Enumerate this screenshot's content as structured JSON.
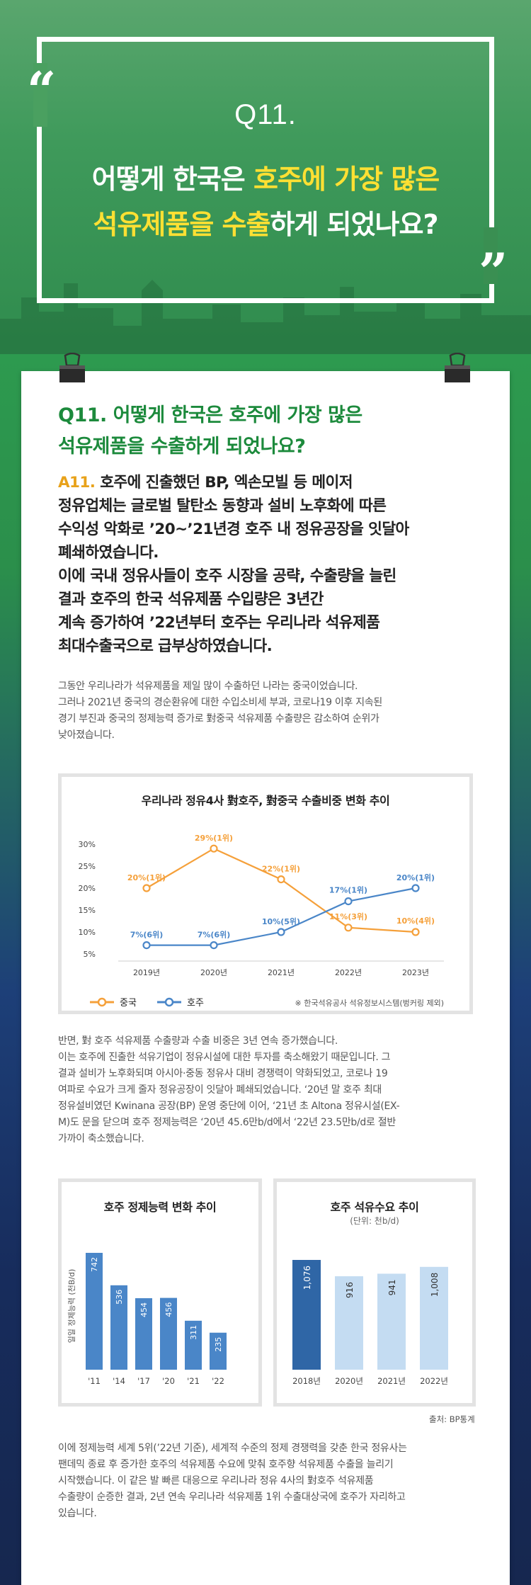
{
  "hero": {
    "q_number": "Q11.",
    "title_line1_pre": "어떻게 한국은 ",
    "title_line1_hl": "호주에 가장 많은",
    "title_line2_hl": "석유제품을 수출",
    "title_line2_post": "하게 되었나요?",
    "open_quote": "“",
    "close_quote": "”"
  },
  "question": {
    "line1": "Q11. 어떻게 한국은 호주에 가장 많은",
    "line2": "석유제품을 수출하게 되었나요?"
  },
  "answer": {
    "label": "A11.",
    "line1": " 호주에 진출했던 BP, 엑손모빌 등 메이저",
    "line2": "정유업체는 글로벌 탈탄소 동향과 설비 노후화에 따른",
    "line3": "수익성 악화로 ’20~’21년경 호주 내 정유공장을 잇달아",
    "line4": "폐쇄하였습니다.",
    "line5": "이에 국내 정유사들이 호주 시장을 공략, 수출량을 늘린",
    "line6": "결과 호주의 한국 석유제품 수입량은 3년간",
    "line7": "계속 증가하여 ’22년부터 호주는 우리나라 석유제품",
    "line8": "최대수출국으로 급부상하였습니다."
  },
  "paragraph1": {
    "line1": "그동안 우리나라가 석유제품을 제일 많이 수출하던 나라는 중국이었습니다.",
    "line2": "그러나 2021년 중국의 경순환유에 대한 수입소비세 부과, 코로나19 이후 지속된",
    "line3": "경기 부진과 중국의 정제능력 증가로 對중국 석유제품 수출량은 감소하여 순위가",
    "line4": "낮아졌습니다."
  },
  "paragraph2": {
    "line1": "반면, 對 호주 석유제품 수출량과 수출 비중은 3년 연속 증가했습니다.",
    "line2": "이는 호주에 진출한 석유기업이 정유시설에 대한 투자를 축소해왔기 때문입니다. 그",
    "line3": "결과 설비가 노후화되며 아시아·중동 정유사 대비 경쟁력이 약화되었고, 코로나 19",
    "line4": "여파로 수요가 크게 줄자 정유공장이 잇달아 폐쇄되었습니다. ‘20년 말 호주 최대",
    "line5": "정유설비였던 Kwinana 공장(BP) 운영 중단에 이어, ‘21년 초 Altona 정유시설(EX-",
    "line6": "M)도 문을 닫으며 호주 정제능력은 ‘20년 45.6만b/d에서 ‘22년 23.5만b/d로 절반",
    "line7": "가까이 축소했습니다."
  },
  "paragraph3": {
    "line1": "이에 정제능력 세계 5위(’22년 기준), 세계적 수준의 정제 경쟁력을 갖춘 한국 정유사는",
    "line2": "팬데믹 종료 후 증가한 호주의 석유제품 수요에 맞춰 호주향 석유제품 수출을 늘리기",
    "line3": "시작했습니다. 이 같은 발 빠른 대응으로 우리나라 정유 4사의 對호주 석유제품",
    "line4": "수출량이 순증한 결과, 2년 연속 우리나라 석유제품 1위 수출대상국에 호주가 자리하고",
    "line5": "있습니다."
  },
  "chart_data": [
    {
      "type": "line",
      "title": "우리나라 정유4사 對호주, 對중국 수출비중 변화 추이",
      "x": [
        "2019년",
        "2020년",
        "2021년",
        "2022년",
        "2023년"
      ],
      "y_ticks": [
        "30%",
        "25%",
        "20%",
        "15%",
        "10%",
        "5%"
      ],
      "ylim": [
        5,
        30
      ],
      "series": [
        {
          "name": "중국",
          "color": "#f5a03a",
          "values": [
            20,
            29,
            22,
            11,
            10
          ],
          "labels": [
            "20%(1위)",
            "29%(1위)",
            "22%(1위)",
            "11%(3위)",
            "10%(4위)"
          ]
        },
        {
          "name": "호주",
          "color": "#4a86c8",
          "values": [
            7,
            7,
            10,
            17,
            20
          ],
          "labels": [
            "7%(6위)",
            "7%(6위)",
            "10%(5위)",
            "17%(1위)",
            "20%(1위)"
          ]
        }
      ],
      "legend": "bottom-left",
      "note": "※ 한국석유공사 석유정보시스템(벙커링 제외)"
    },
    {
      "type": "bar",
      "title": "호주 정제능력 변화 추이",
      "ylabel": "일일 정제능력 (천B/d)",
      "categories": [
        "'11",
        "'14",
        "'17",
        "'20",
        "'21",
        "'22"
      ],
      "values": [
        742,
        536,
        454,
        456,
        311,
        235
      ],
      "value_labels": [
        "742",
        "536",
        "454",
        "456",
        "311",
        "235"
      ],
      "color": "#4a86c8"
    },
    {
      "type": "bar",
      "title": "호주 석유수요 추이",
      "subtitle": "(단위: 천b/d)",
      "categories": [
        "2018년",
        "2020년",
        "2021년",
        "2022년"
      ],
      "values": [
        1076,
        916,
        941,
        1008
      ],
      "value_labels": [
        "1,076",
        "916",
        "941",
        "1,008"
      ],
      "colors": [
        "#2f66a6",
        "#c4dcf2",
        "#c4dcf2",
        "#c4dcf2"
      ],
      "source": "출처: BP통계"
    }
  ]
}
